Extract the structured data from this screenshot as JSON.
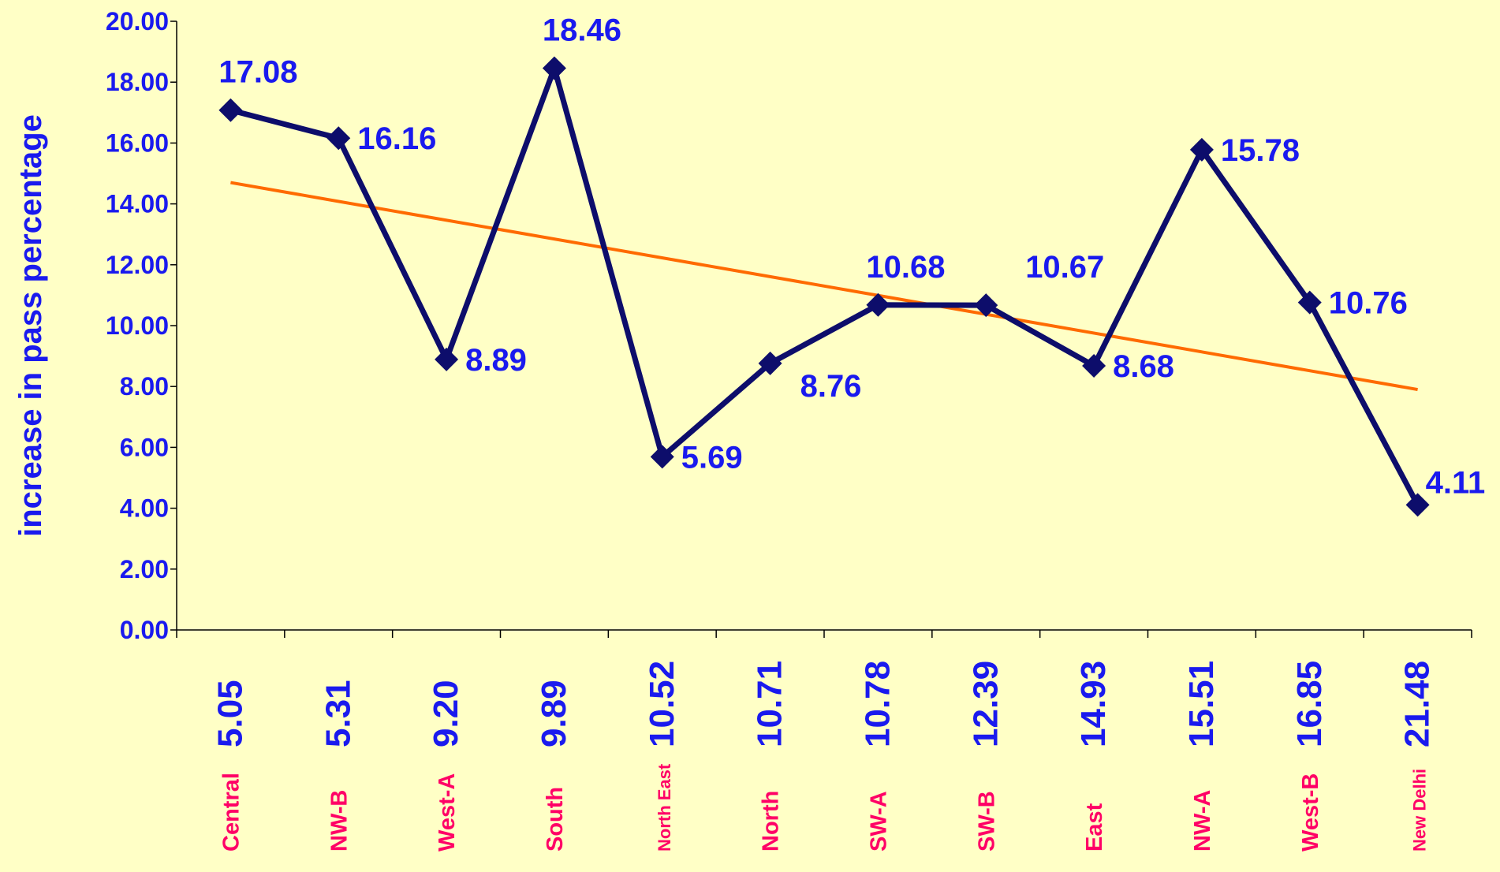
{
  "chart_data": {
    "type": "line",
    "y_axis_label": "increase in pass percentage",
    "categories": [
      "Central",
      "NW-B",
      "West-A",
      "South",
      "North East",
      "North",
      "SW-A",
      "SW-B",
      "East",
      "NW-A",
      "West-B",
      "New Delhi"
    ],
    "category_numbers": [
      "5.05",
      "5.31",
      "9.20",
      "9.89",
      "10.52",
      "10.71",
      "10.78",
      "12.39",
      "14.93",
      "15.51",
      "16.85",
      "21.48"
    ],
    "series": [
      {
        "color": "#0d0d6b",
        "values": [
          17.08,
          16.16,
          8.89,
          18.46,
          5.69,
          8.76,
          10.68,
          10.67,
          8.68,
          15.78,
          10.76,
          4.11
        ]
      }
    ],
    "trendline": {
      "color": "#ff6a00",
      "values": [
        14.7,
        7.9
      ]
    },
    "ylim": [
      0,
      20
    ],
    "yticks": [
      {
        "value": 0,
        "label": "0.00"
      },
      {
        "value": 2,
        "label": "2.00"
      },
      {
        "value": 4,
        "label": "4.00"
      },
      {
        "value": 6,
        "label": "6.00"
      },
      {
        "value": 8,
        "label": "8.00"
      },
      {
        "value": 10,
        "label": "10.00"
      },
      {
        "value": 12,
        "label": "12.00"
      },
      {
        "value": 14,
        "label": "14.00"
      },
      {
        "value": 16,
        "label": "16.00"
      },
      {
        "value": 18,
        "label": "18.00"
      },
      {
        "value": 20,
        "label": "20.00"
      }
    ]
  }
}
